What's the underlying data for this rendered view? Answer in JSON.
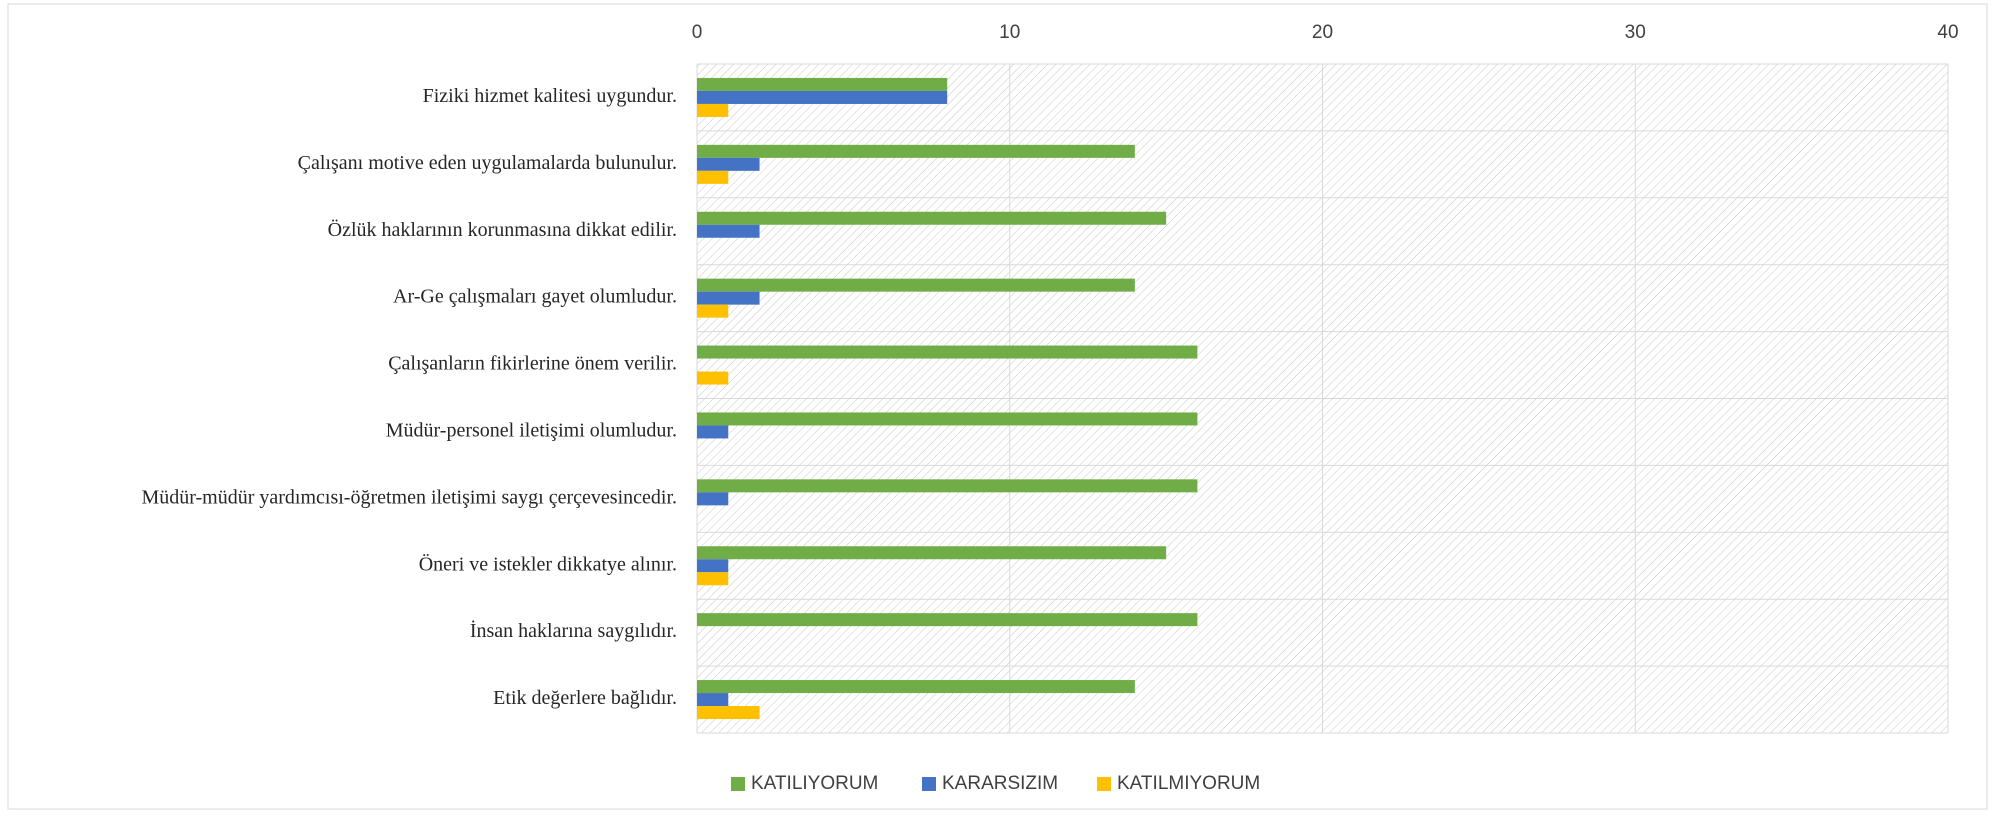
{
  "chart_data": {
    "type": "bar",
    "orientation": "horizontal",
    "categories": [
      "Fiziki hizmet kalitesi uygundur.",
      "Çalışanı motive eden uygulamalarda bulunulur.",
      "Özlük haklarının korunmasına dikkat edilir.",
      "Ar-Ge çalışmaları gayet olumludur.",
      "Çalışanların fikirlerine önem verilir.",
      "Müdür-personel iletişimi olumludur.",
      "Müdür-müdür yardımcısı-öğretmen iletişimi saygı çerçevesincedir.",
      "Öneri ve istekler dikkatye alınır.",
      "İnsan haklarına saygılıdır.",
      "Etik değerlere bağlıdır."
    ],
    "series": [
      {
        "name": "KATILIYORUM",
        "color": "#70ad47",
        "values": [
          8,
          14,
          15,
          14,
          16,
          16,
          16,
          15,
          16,
          14
        ]
      },
      {
        "name": "KARARSIZIM",
        "color": "#4472c4",
        "values": [
          8,
          2,
          2,
          2,
          0,
          1,
          1,
          1,
          0,
          1
        ]
      },
      {
        "name": "KATILMIYORUM",
        "color": "#ffc000",
        "values": [
          1,
          1,
          0,
          1,
          1,
          0,
          0,
          1,
          0,
          2
        ]
      }
    ],
    "xlim": [
      0,
      40
    ],
    "xticks": [
      0,
      10,
      20,
      30,
      40
    ],
    "grid": true,
    "legend": "bottom"
  }
}
